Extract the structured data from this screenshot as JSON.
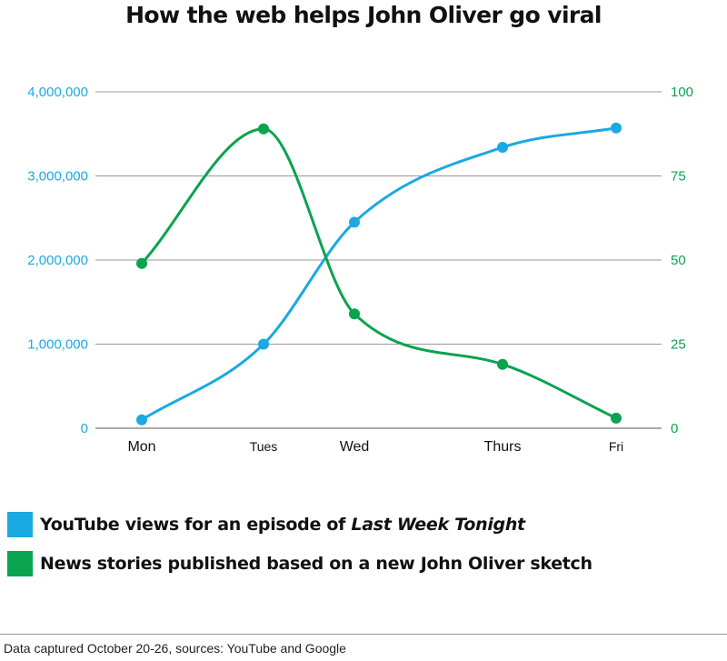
{
  "chart_data": {
    "type": "line",
    "title": "How the web helps John Oliver go viral",
    "categories": [
      "Mon",
      "Tues",
      "Wed",
      "Thurs",
      "Fri"
    ],
    "series": [
      {
        "name": "YouTube views for an episode of Last Week Tonight",
        "name_plain": "YouTube views for an episode of ",
        "name_italic": "Last Week Tonight",
        "axis": "left",
        "color": "#1aa9e1",
        "values": [
          100000,
          1000000,
          2450000,
          3340000,
          3570000
        ]
      },
      {
        "name": "News stories published based on a new John Oliver sketch",
        "axis": "right",
        "color": "#0aa34f",
        "values": [
          49,
          89,
          34,
          19,
          3
        ]
      }
    ],
    "y_left": {
      "min": 0,
      "max": 4000000,
      "ticks": [
        0,
        1000000,
        2000000,
        3000000,
        4000000
      ],
      "tick_labels": [
        "0",
        "1,000,000",
        "2,000,000",
        "3,000,000",
        "4,000,000"
      ],
      "color": "#1aa9e1"
    },
    "y_right": {
      "min": 0,
      "max": 100,
      "ticks": [
        0,
        25,
        50,
        75,
        100
      ],
      "tick_labels": [
        "0",
        "25",
        "50",
        "75",
        "100"
      ],
      "color": "#0aa34f"
    },
    "grid": true,
    "legend_placement": "bottom"
  },
  "footer": {
    "note": "Data captured October 20-26, sources: YouTube and Google"
  }
}
